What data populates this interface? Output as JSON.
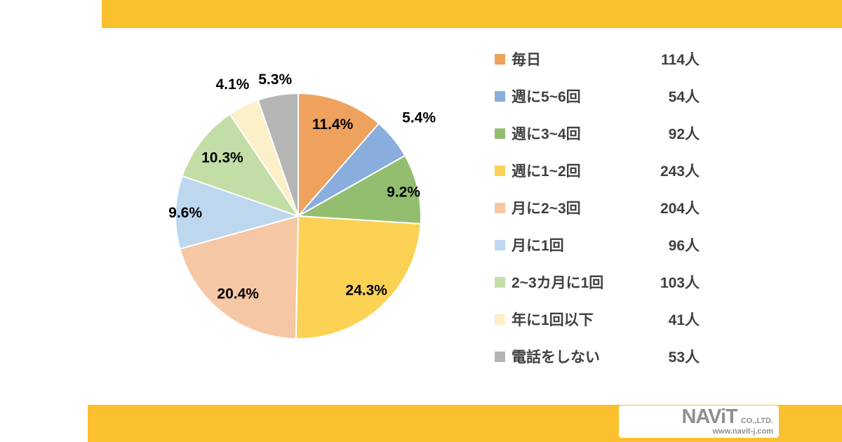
{
  "page": {
    "background": "#FFFFFF",
    "band_color": "#FBC02D"
  },
  "chart_data": {
    "type": "pie",
    "start_angle_deg": 0,
    "direction": "clockwise",
    "legend_position": "right",
    "slices": [
      {
        "label": "毎日",
        "pct": 11.4,
        "pct_label": "11.4%",
        "count": 114,
        "count_label": "114人",
        "color": "#EFA15E",
        "label_r": 0.8
      },
      {
        "label": "週に5~6回",
        "pct": 5.4,
        "pct_label": "5.4%",
        "count": 54,
        "count_label": "54人",
        "color": "#89AEDD",
        "label_r": 1.27
      },
      {
        "label": "週に3~4回",
        "pct": 9.2,
        "pct_label": "9.2%",
        "count": 92,
        "count_label": "92人",
        "color": "#93BE70",
        "label_r": 0.88
      },
      {
        "label": "週に1~2回",
        "pct": 24.3,
        "pct_label": "24.3%",
        "count": 243,
        "count_label": "243人",
        "color": "#FCD255",
        "label_r": 0.82
      },
      {
        "label": "月に2~3回",
        "pct": 20.4,
        "pct_label": "20.4%",
        "count": 204,
        "count_label": "204人",
        "color": "#F5C7A4",
        "label_r": 0.8
      },
      {
        "label": "月に1回",
        "pct": 9.6,
        "pct_label": "9.6%",
        "count": 96,
        "count_label": "96人",
        "color": "#BDD7EE",
        "label_r": 0.92
      },
      {
        "label": "2~3カ月に1回",
        "pct": 10.3,
        "pct_label": "10.3%",
        "count": 103,
        "count_label": "103人",
        "color": "#C3DDA7",
        "label_r": 0.78
      },
      {
        "label": "年に1回以下",
        "pct": 4.1,
        "pct_label": "4.1%",
        "count": 41,
        "count_label": "41人",
        "color": "#FBF0C8",
        "label_r": 1.2
      },
      {
        "label": "電話をしない",
        "pct": 5.3,
        "pct_label": "5.3%",
        "count": 53,
        "count_label": "53人",
        "color": "#B5B5B5",
        "label_r": 1.13
      }
    ]
  },
  "footer": {
    "logo_text": "NAViT",
    "logo_suffix": "CO.,LTD.",
    "logo_url": "www.navit-j.com"
  }
}
